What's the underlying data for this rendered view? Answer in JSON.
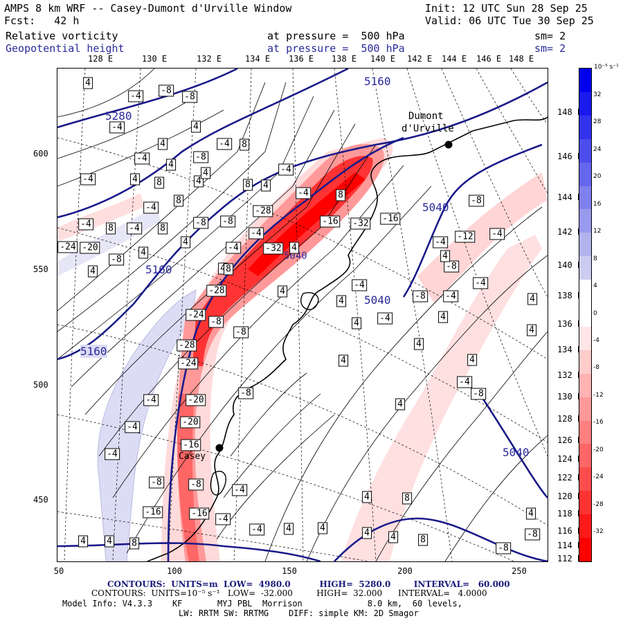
{
  "header": {
    "title": "AMPS 8 km WRF -- Casey-Dumont d'Urville Window",
    "init": "Init: 12 UTC Sun 28 Sep 25",
    "fcst": "Fcst:   42 h",
    "valid": "Valid: 06 UTC Tue 30 Sep 25",
    "field1_name": "Relative vorticity",
    "field1_level": "at pressure =  500 hPa",
    "field1_sm": "sm= 2",
    "field2_name": "Geopotential height",
    "field2_level": "at pressure =  500 hPa",
    "field2_sm": "sm= 2"
  },
  "top_lon_labels": [
    "128 E",
    "130 E",
    "132 E",
    "134 E",
    "136 E",
    "138 E",
    "140 E",
    "142 E",
    "144 E",
    "146 E",
    "148 E"
  ],
  "right_lon_labels": [
    "148 E",
    "146 E",
    "144 E",
    "142 E",
    "140 E",
    "138 E",
    "136 E",
    "134 E",
    "132 E",
    "130 E",
    "128 E",
    "126 E",
    "124 E",
    "122 E",
    "120 E",
    "118 E",
    "116 E",
    "114 E",
    "112 E"
  ],
  "x_ticks": [
    "50",
    "100",
    "150",
    "200",
    "250"
  ],
  "y_ticks": [
    "600",
    "550",
    "500",
    "450"
  ],
  "place_labels": {
    "dumont": "Dumont",
    "durville": "d'Urville",
    "casey": "Casey"
  },
  "height_contour_labels": [
    "5160",
    "5280",
    "5040",
    "5160",
    "5160",
    "5040",
    "5040",
    "5040"
  ],
  "vort_box_labels": [
    "4",
    "-4",
    "-8",
    "-4",
    "-8",
    "4",
    "4",
    "-4",
    "4",
    "-8",
    "-4",
    "8",
    "-4",
    "4",
    "8",
    "4",
    "-4",
    "8",
    "-4",
    "-8",
    "-8",
    "8",
    "8",
    "-4",
    "-4",
    "8",
    "-28",
    "-16",
    "-32",
    "-16",
    "-4",
    "4",
    "-4",
    "4",
    "-32",
    "-24",
    "-20",
    "-8",
    "4",
    "4",
    "8",
    "8",
    "4",
    "-4",
    "-28",
    "-24",
    "-8",
    "-8",
    "-28",
    "-8",
    "4",
    "4",
    "-24",
    "-20",
    "-20",
    "-16",
    "-8",
    "-8",
    "-16",
    "-16",
    "-4",
    "-4",
    "4",
    "4",
    "4",
    "4",
    "-8",
    "-8",
    "-8",
    "-8",
    "-4",
    "-12",
    "-4",
    "-8",
    "-8",
    "-4",
    "-4",
    "4",
    "-4",
    "4",
    "4",
    "4",
    "-4",
    "4",
    "4",
    "4",
    "-4",
    "4",
    "4",
    "4",
    "4",
    "8",
    "8",
    "8",
    "4",
    "4",
    "-4",
    "-4",
    "-4",
    "-4",
    "4",
    "4",
    "-4",
    "4"
  ],
  "colorbar": {
    "unit": "10⁻⁵ s⁻¹",
    "labels": [
      "32",
      "28",
      "24",
      "20",
      "16",
      "12",
      "8",
      "4",
      "0",
      "-4",
      "-8",
      "-12",
      "-16",
      "-20",
      "-24",
      "-28",
      "-32"
    ],
    "colors": [
      "#0000ee",
      "#1a1aee",
      "#3333ee",
      "#4d4dee",
      "#6666ee",
      "#8080ee",
      "#9999ee",
      "#b3b3ee",
      "#ccccf2",
      "#ffffff",
      "#ffffff",
      "#ffe5e5",
      "#ffcccc",
      "#ffb3b3",
      "#ff9999",
      "#ff8080",
      "#ff6666",
      "#ff4d4d",
      "#ff3333",
      "#ff1a1a",
      "#ff0000"
    ]
  },
  "footer": {
    "line1_contours": "CONTOURS:  UNITS=m  LOW=  4980.0          HIGH=  5280.0        INTERVAL=   60.000",
    "line2_contours": "CONTOURS:  UNITS=10⁻⁵ s⁻¹   LOW=  -32.000         HIGH=  32.000      INTERVAL=   4.0000",
    "line3": "Model Info: V4.3.3    KF       MYJ PBL  Morrison             8.0 km,  60 levels,",
    "line4": "LW: RRTM SW: RRTMG    DIFF: simple KM: 2D Smagor"
  }
}
